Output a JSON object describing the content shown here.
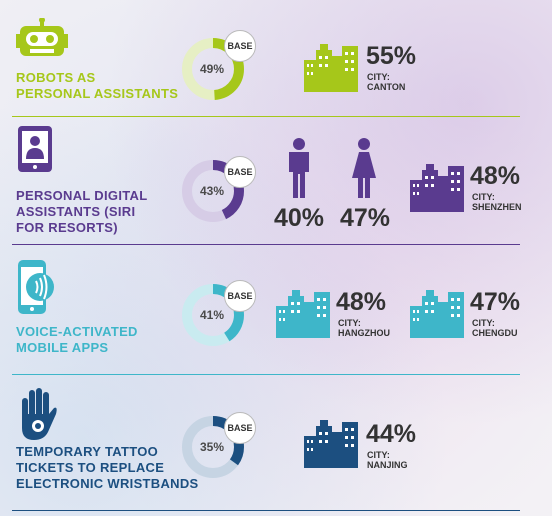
{
  "colors": {
    "robots": "#a6c71a",
    "assistants": "#5a3b8f",
    "voice": "#3eb6c9",
    "tattoo": "#1c4f80"
  },
  "rows": [
    {
      "label_lines": [
        "ROBOTS AS",
        "PERSONAL ASSISTANTS"
      ],
      "icon": "robot-icon",
      "base_label": "BASE",
      "base_value": "49%",
      "base_fraction": 0.49,
      "cities": [
        {
          "pct": "55%",
          "city_prefix": "CITY:",
          "city": "CANTON"
        }
      ]
    },
    {
      "label_lines": [
        "PERSONAL DIGITAL",
        "ASSISTANTS (SIRI",
        "FOR RESORTS)"
      ],
      "icon": "tablet-person-icon",
      "base_label": "BASE",
      "base_value": "43%",
      "base_fraction": 0.43,
      "gender": {
        "male_icon": "male-icon",
        "male_pct": "40%",
        "female_icon": "female-icon",
        "female_pct": "47%"
      },
      "cities": [
        {
          "pct": "48%",
          "city_prefix": "CITY:",
          "city": "SHENZHEN"
        }
      ]
    },
    {
      "label_lines": [
        "VOICE-ACTIVATED",
        "MOBILE APPS"
      ],
      "icon": "phone-voice-icon",
      "base_label": "BASE",
      "base_value": "41%",
      "base_fraction": 0.41,
      "cities": [
        {
          "pct": "48%",
          "city_prefix": "CITY:",
          "city": "HANGZHOU"
        },
        {
          "pct": "47%",
          "city_prefix": "CITY:",
          "city": "CHENGDU"
        }
      ]
    },
    {
      "label_lines": [
        "TEMPORARY TATTOO",
        "TICKETS TO REPLACE",
        "ELECTRONIC WRISTBANDS"
      ],
      "icon": "hand-tattoo-icon",
      "base_label": "BASE",
      "base_value": "35%",
      "base_fraction": 0.35,
      "cities": [
        {
          "pct": "44%",
          "city_prefix": "CITY:",
          "city": "NANJING"
        }
      ]
    }
  ]
}
